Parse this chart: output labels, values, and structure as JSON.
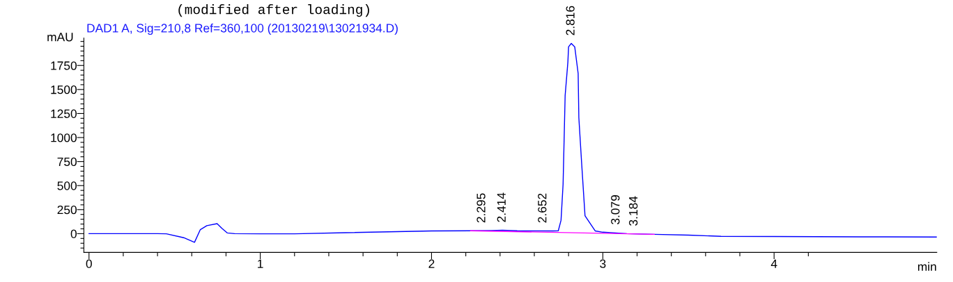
{
  "chart_data": {
    "type": "line",
    "title": "DAD1 A, Sig=210,8 Ref=360,100 (20130219\\13021934.D)",
    "xlabel": "min",
    "ylabel": "mAU",
    "x": [
      0,
      0.2,
      0.4,
      0.452,
      0.553,
      0.616,
      0.65,
      0.688,
      0.748,
      0.776,
      0.808,
      0.85,
      1.0,
      1.2,
      1.5,
      2.0,
      2.228,
      2.35,
      2.414,
      2.5,
      2.6,
      2.708,
      2.74,
      2.756,
      2.768,
      2.78,
      2.796,
      2.8,
      2.816,
      2.836,
      2.856,
      2.86,
      2.876,
      2.896,
      2.956,
      3.0,
      3.14,
      3.3,
      3.5,
      3.69,
      4.0,
      4.5,
      4.95
    ],
    "series": [
      {
        "color": "#0000ff",
        "values": [
          0,
          0,
          0,
          -2,
          -42,
          -90,
          42,
          83,
          104,
          55,
          7,
          0,
          -2,
          -2,
          10,
          28,
          30,
          32,
          35,
          30,
          29,
          28,
          30,
          139,
          514,
          1437,
          1785,
          1944,
          1979,
          1944,
          1667,
          1208,
          743,
          187,
          28,
          15,
          0,
          -7,
          -15,
          -28,
          -30,
          -33,
          -35
        ]
      },
      {
        "color": "#ff00ff",
        "x": [
          2.228,
          3.3
        ],
        "values": [
          30,
          -7
        ]
      }
    ],
    "xlim": [
      -0.03,
      4.95
    ],
    "xticks": [
      0,
      {
        "value": 0.2,
        "label": null
      },
      {
        "value": 0.4,
        "label": null
      },
      {
        "value": 0.6,
        "label": null
      },
      {
        "value": 0.8,
        "label": null
      },
      1,
      {
        "value": 1.2,
        "label": null
      },
      {
        "value": 1.4,
        "label": null
      },
      {
        "value": 1.6,
        "label": null
      },
      {
        "value": 1.8,
        "label": null
      },
      2,
      {
        "value": 2.2,
        "label": null
      },
      {
        "value": 2.4,
        "label": null
      },
      {
        "value": 2.6,
        "label": null
      },
      {
        "value": 2.8,
        "label": null
      },
      3,
      {
        "value": 3.2,
        "label": null
      },
      {
        "value": 3.4,
        "label": null
      },
      {
        "value": 3.6,
        "label": null
      },
      {
        "value": 3.8,
        "label": null
      },
      4,
      {
        "value": 4.2,
        "label": null
      }
    ],
    "ylim": [
      -195,
      2035
    ],
    "yticks": [
      {
        "value": -150,
        "label": null
      },
      {
        "value": -100,
        "label": null
      },
      {
        "value": -50,
        "label": null
      },
      0,
      {
        "value": 50,
        "label": null
      },
      {
        "value": 100,
        "label": null
      },
      {
        "value": 150,
        "label": null
      },
      {
        "value": 200,
        "label": null
      },
      250,
      {
        "value": 300,
        "label": null
      },
      {
        "value": 350,
        "label": null
      },
      {
        "value": 400,
        "label": null
      },
      {
        "value": 450,
        "label": null
      },
      500,
      {
        "value": 550,
        "label": null
      },
      {
        "value": 600,
        "label": null
      },
      {
        "value": 650,
        "label": null
      },
      {
        "value": 700,
        "label": null
      },
      750,
      {
        "value": 800,
        "label": null
      },
      {
        "value": 850,
        "label": null
      },
      {
        "value": 900,
        "label": null
      },
      {
        "value": 950,
        "label": null
      },
      1000,
      {
        "value": 1050,
        "label": null
      },
      {
        "value": 1100,
        "label": null
      },
      {
        "value": 1150,
        "label": null
      },
      {
        "value": 1200,
        "label": null
      },
      1250,
      {
        "value": 1300,
        "label": null
      },
      {
        "value": 1350,
        "label": null
      },
      {
        "value": 1400,
        "label": null
      },
      {
        "value": 1450,
        "label": null
      },
      1500,
      {
        "value": 1550,
        "label": null
      },
      {
        "value": 1600,
        "label": null
      },
      {
        "value": 1650,
        "label": null
      },
      {
        "value": 1700,
        "label": null
      },
      1750,
      {
        "value": 1800,
        "label": null
      },
      {
        "value": 1850,
        "label": null
      },
      {
        "value": 1900,
        "label": null
      },
      {
        "value": 1950,
        "label": null
      },
      {
        "value": 2000,
        "label": null
      }
    ],
    "annotations": [
      "(modified after loading)",
      {
        "text": "2.295",
        "x": 2.295,
        "y": 30
      },
      {
        "text": "2.414",
        "x": 2.414,
        "y": 35
      },
      {
        "text": "2.652",
        "x": 2.652,
        "y": 29
      },
      {
        "text": "2.816",
        "x": 2.816,
        "y": 1979
      },
      {
        "text": "3.079",
        "x": 3.079,
        "y": 12
      },
      {
        "text": "3.184",
        "x": 3.184,
        "y": -2
      }
    ],
    "grid": false,
    "legend": false,
    "marker": "none",
    "line_style": "solid"
  }
}
